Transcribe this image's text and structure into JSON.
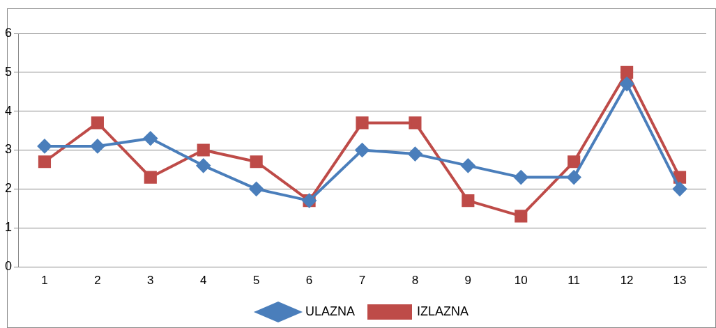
{
  "chart_data": {
    "type": "line",
    "categories": [
      "1",
      "2",
      "3",
      "4",
      "5",
      "6",
      "7",
      "8",
      "9",
      "10",
      "11",
      "12",
      "13"
    ],
    "series": [
      {
        "name": "ULAZNA",
        "color": "#4a7ebb",
        "marker": "diamond",
        "values": [
          3.1,
          3.1,
          3.3,
          2.6,
          2.0,
          1.7,
          3.0,
          2.9,
          2.6,
          2.3,
          2.3,
          4.7,
          2.0
        ]
      },
      {
        "name": "IZLAZNA",
        "color": "#be4b48",
        "marker": "square",
        "values": [
          2.7,
          3.7,
          2.3,
          3.0,
          2.7,
          1.7,
          3.7,
          3.7,
          1.7,
          1.3,
          2.7,
          5.0,
          2.3
        ]
      }
    ],
    "ylim": [
      0,
      6
    ],
    "yticks": [
      0,
      1,
      2,
      3,
      4,
      5,
      6
    ],
    "grid": "y",
    "legend": "bottom",
    "line_style": "solid"
  }
}
